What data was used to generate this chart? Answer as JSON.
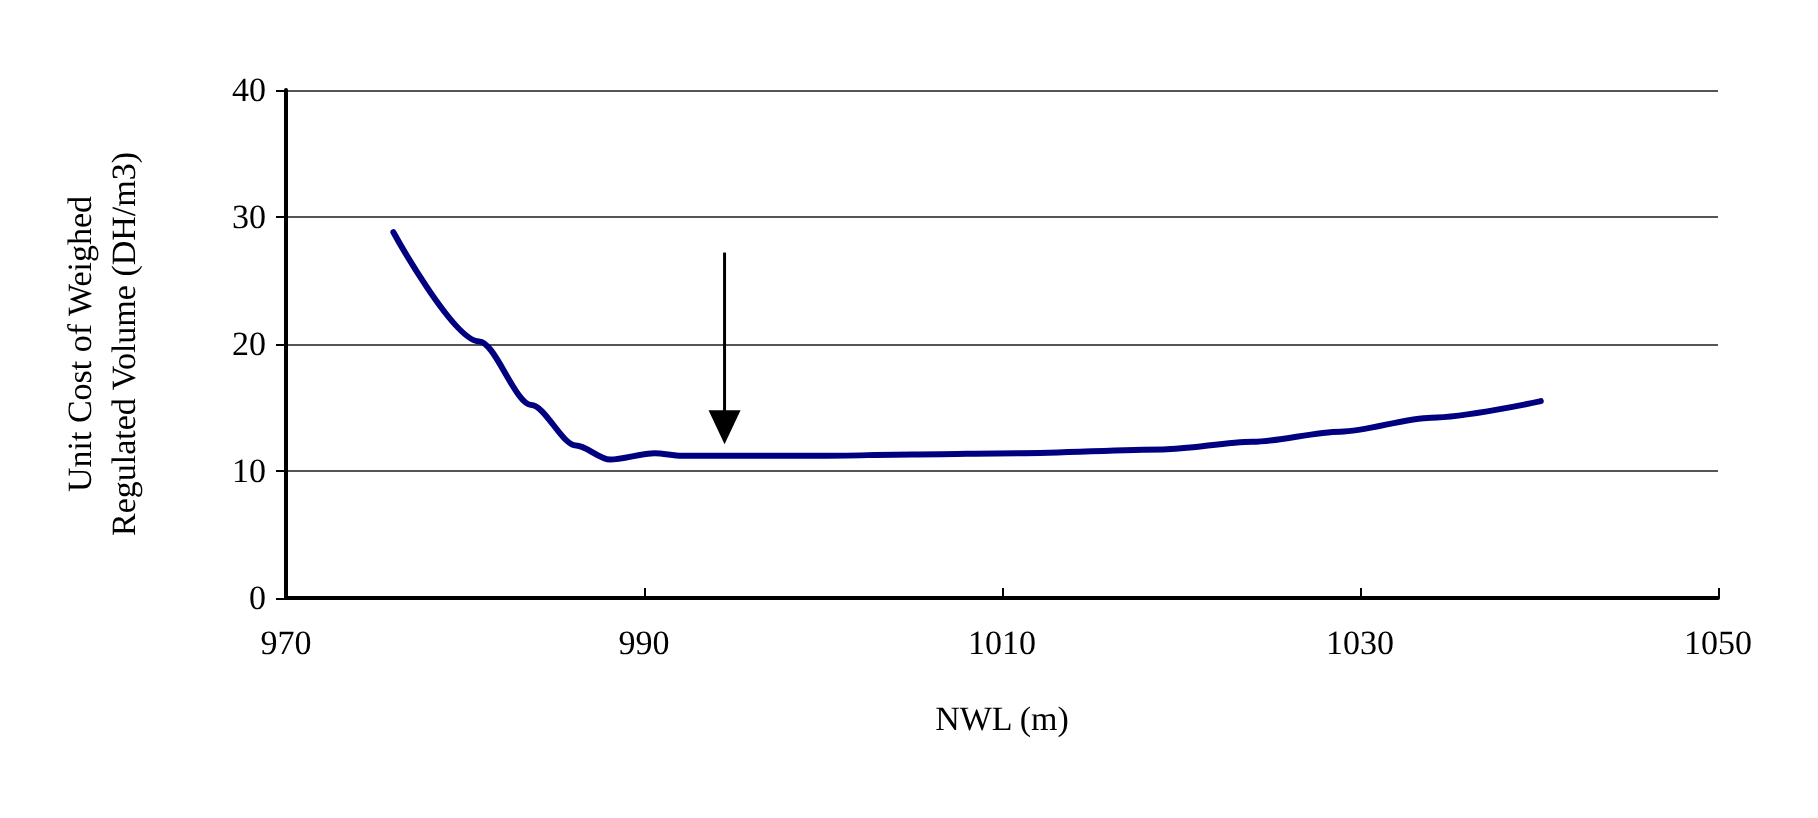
{
  "chart_data": {
    "type": "line",
    "xlabel": "NWL (m)",
    "ylabel": "Unit Cost of Weighed\nRegulated Volume (DH/m3)",
    "x": [
      976,
      980.8,
      983.7,
      986.2,
      988.1,
      990.6,
      992.1,
      996,
      1000,
      1005,
      1011,
      1019,
      1024,
      1028.9,
      1034,
      1040.1
    ],
    "series": [
      {
        "color": "#000080",
        "values": [
          28.8,
          20.2,
          15.2,
          12.0,
          10.9,
          11.4,
          11.2,
          11.2,
          11.2,
          11.3,
          11.4,
          11.7,
          12.3,
          13.1,
          14.2,
          15.5
        ]
      }
    ],
    "xlim": [
      970,
      1050
    ],
    "xticks": [
      970,
      990,
      1010,
      1030,
      1050
    ],
    "ylim": [
      0,
      40
    ],
    "yticks": [
      0,
      10,
      20,
      30,
      40
    ],
    "grid": "y",
    "marker": "none",
    "line_style": "solid"
  }
}
